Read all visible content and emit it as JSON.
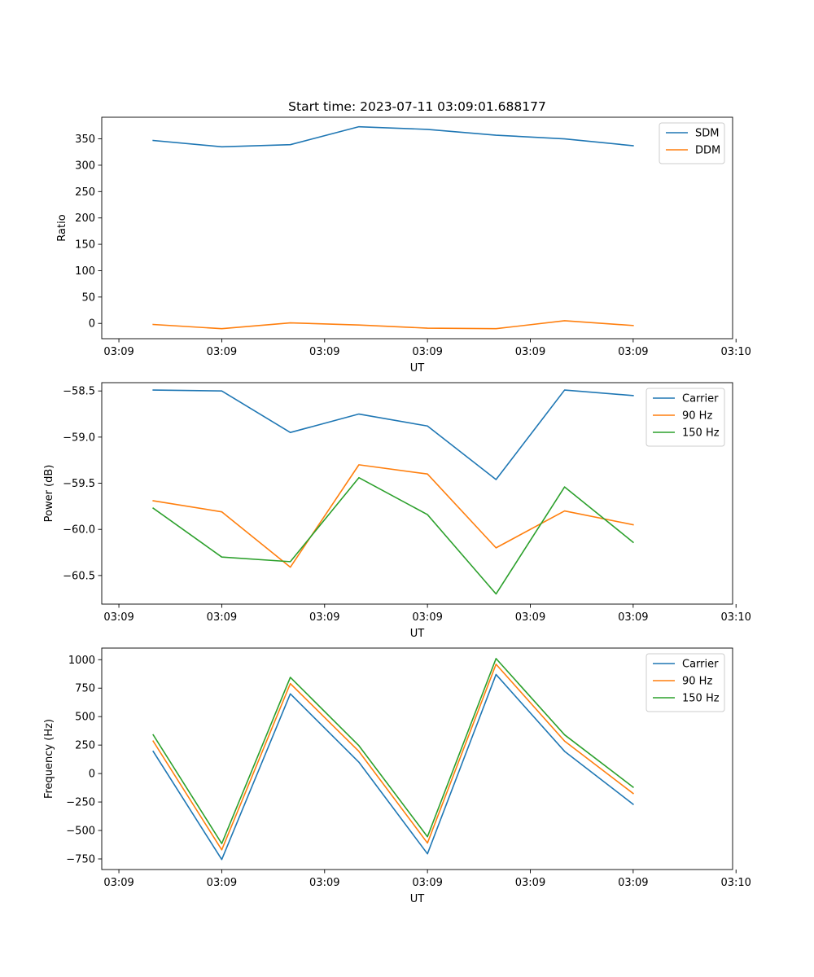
{
  "chart_data": [
    {
      "type": "line",
      "title": "Start time: 2023-07-11 03:09:01.688177",
      "xlabel": "UT",
      "ylabel": "Ratio",
      "ylim": [
        -29,
        391
      ],
      "yticks": [
        0,
        50,
        100,
        150,
        200,
        250,
        300,
        350
      ],
      "yticklabels": [
        "0",
        "50",
        "100",
        "150",
        "200",
        "250",
        "300",
        "350"
      ],
      "xlim": [
        -0.75,
        8.45
      ],
      "xticks": [
        -0.5,
        1.0,
        2.5,
        4.0,
        5.5,
        7.0,
        8.5
      ],
      "xticklabels": [
        "03:09",
        "03:09",
        "03:09",
        "03:09",
        "03:09",
        "03:09",
        "03:10"
      ],
      "x": [
        0,
        1,
        2,
        3,
        4,
        5,
        6,
        7
      ],
      "legend_loc": "top-right",
      "series": [
        {
          "name": "SDM",
          "color": "#1f77b4",
          "values": [
            347,
            335,
            339,
            373,
            368,
            357,
            350,
            337
          ]
        },
        {
          "name": "DDM",
          "color": "#ff7f0e",
          "values": [
            -2,
            -10,
            1,
            -3,
            -9,
            -10,
            5,
            -4
          ]
        }
      ]
    },
    {
      "type": "line",
      "title": "",
      "xlabel": "UT",
      "ylabel": "Power (dB)",
      "ylim": [
        -60.81,
        -58.41
      ],
      "yticks": [
        -60.5,
        -60.0,
        -59.5,
        -59.0,
        -58.5
      ],
      "yticklabels": [
        "−60.5",
        "−60.0",
        "−59.5",
        "−59.0",
        "−58.5"
      ],
      "xlim": [
        -0.75,
        8.45
      ],
      "xticks": [
        -0.5,
        1.0,
        2.5,
        4.0,
        5.5,
        7.0,
        8.5
      ],
      "xticklabels": [
        "03:09",
        "03:09",
        "03:09",
        "03:09",
        "03:09",
        "03:09",
        "03:10"
      ],
      "x": [
        0,
        1,
        2,
        3,
        4,
        5,
        6,
        7
      ],
      "legend_loc": "top-right",
      "series": [
        {
          "name": "Carrier",
          "color": "#1f77b4",
          "values": [
            -58.49,
            -58.5,
            -58.95,
            -58.75,
            -58.88,
            -59.46,
            -58.49,
            -58.55
          ]
        },
        {
          "name": "90 Hz",
          "color": "#ff7f0e",
          "values": [
            -59.69,
            -59.81,
            -60.41,
            -59.3,
            -59.4,
            -60.2,
            -59.8,
            -59.95
          ]
        },
        {
          "name": "150 Hz",
          "color": "#2ca02c",
          "values": [
            -59.77,
            -60.3,
            -60.35,
            -59.44,
            -59.84,
            -60.7,
            -59.54,
            -60.14
          ]
        }
      ]
    },
    {
      "type": "line",
      "title": "",
      "xlabel": "UT",
      "ylabel": "Frequency (Hz)",
      "ylim": [
        -843,
        1102
      ],
      "yticks": [
        -750,
        -500,
        -250,
        0,
        250,
        500,
        750,
        1000
      ],
      "yticklabels": [
        "−750",
        "−500",
        "−250",
        "0",
        "250",
        "500",
        "750",
        "1000"
      ],
      "xlim": [
        -0.75,
        8.45
      ],
      "xticks": [
        -0.5,
        1.0,
        2.5,
        4.0,
        5.5,
        7.0,
        8.5
      ],
      "xticklabels": [
        "03:09",
        "03:09",
        "03:09",
        "03:09",
        "03:09",
        "03:09",
        "03:10"
      ],
      "x": [
        0,
        1,
        2,
        3,
        4,
        5,
        6,
        7
      ],
      "legend_loc": "top-right",
      "series": [
        {
          "name": "Carrier",
          "color": "#1f77b4",
          "values": [
            195,
            -755,
            700,
            100,
            -705,
            870,
            195,
            -270
          ]
        },
        {
          "name": "90 Hz",
          "color": "#ff7f0e",
          "values": [
            285,
            -670,
            790,
            195,
            -610,
            960,
            285,
            -175
          ]
        },
        {
          "name": "150 Hz",
          "color": "#2ca02c",
          "values": [
            340,
            -615,
            845,
            245,
            -555,
            1010,
            340,
            -120
          ]
        }
      ]
    }
  ]
}
